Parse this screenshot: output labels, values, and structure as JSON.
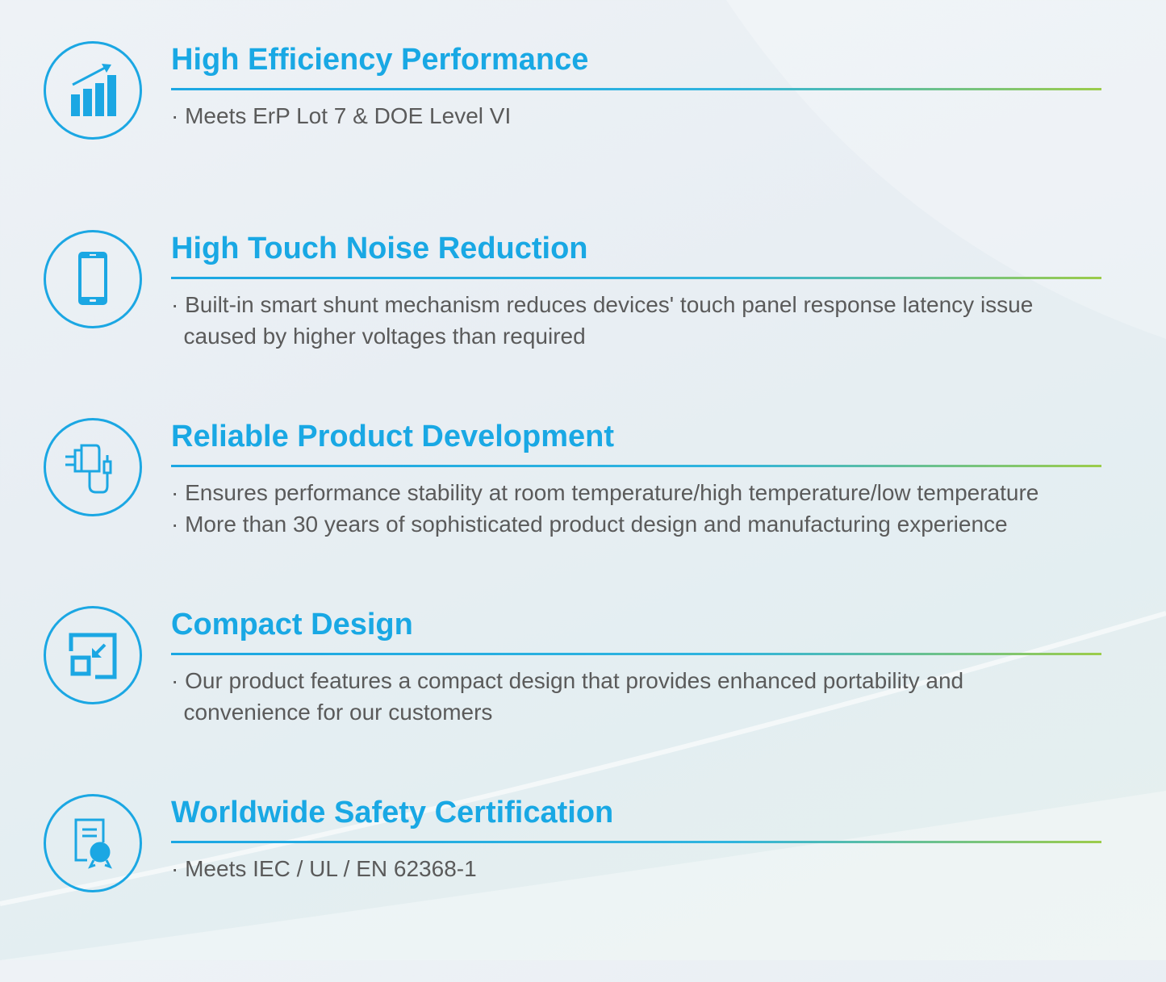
{
  "accent_color": "#19a8e4",
  "features": [
    {
      "icon": "bar-chart-growth-icon",
      "title": "High Efficiency Performance",
      "lines": [
        "· Meets ErP Lot 7 & DOE Level VI"
      ]
    },
    {
      "icon": "smartphone-icon",
      "title": "High Touch Noise Reduction",
      "lines": [
        "· Built-in smart shunt mechanism reduces devices' touch panel response latency issue",
        "  caused by higher voltages than required"
      ]
    },
    {
      "icon": "power-adapter-icon",
      "title": "Reliable Product Development",
      "lines": [
        "· Ensures performance stability at room temperature/high temperature/low temperature",
        "· More than 30 years of sophisticated product  design and manufacturing experience"
      ]
    },
    {
      "icon": "compact-resize-icon",
      "title": "Compact Design",
      "lines": [
        "· Our product features a compact design that provides enhanced portability and",
        "  convenience for our customers"
      ]
    },
    {
      "icon": "certificate-icon",
      "title": "Worldwide Safety Certification",
      "lines": [
        "· Meets IEC / UL / EN 62368-1"
      ]
    }
  ]
}
